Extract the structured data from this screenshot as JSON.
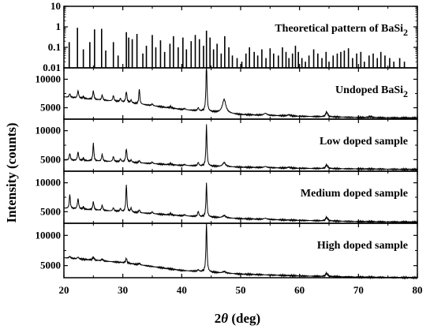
{
  "chart_data": {
    "type": "line",
    "xlabel_prefix": "2",
    "xlabel_symbol": "θ",
    "xlabel_suffix": " (deg)",
    "ylabel": "Intensity (counts)",
    "xlim": [
      20,
      80
    ],
    "x_ticks": [
      20,
      30,
      40,
      50,
      60,
      70,
      80
    ],
    "grid": false,
    "panels": [
      {
        "label": "Theoretical pattern of BaSi",
        "label_sub": "2",
        "type": "stick",
        "y_scale": "log",
        "ylim": [
          0.01,
          10
        ],
        "y_ticks": [
          0.01,
          0.1,
          1,
          10
        ],
        "y_tick_labels": [
          "0.01",
          "0.1",
          "1",
          "10"
        ],
        "sticks": [
          [
            20.9,
            0.18
          ],
          [
            22.3,
            0.9
          ],
          [
            23.3,
            0.08
          ],
          [
            24.4,
            0.18
          ],
          [
            25.2,
            0.75
          ],
          [
            26.4,
            0.8
          ],
          [
            27.1,
            0.07
          ],
          [
            28.4,
            0.18
          ],
          [
            29.2,
            0.04
          ],
          [
            30.6,
            0.55
          ],
          [
            31.0,
            0.3
          ],
          [
            31.6,
            0.25
          ],
          [
            32.4,
            0.45
          ],
          [
            33.4,
            0.05
          ],
          [
            34.0,
            0.12
          ],
          [
            35.0,
            0.4
          ],
          [
            35.6,
            0.1
          ],
          [
            36.4,
            0.22
          ],
          [
            37.1,
            0.06
          ],
          [
            38.0,
            0.15
          ],
          [
            38.6,
            0.35
          ],
          [
            39.4,
            0.1
          ],
          [
            40.2,
            0.3
          ],
          [
            40.8,
            0.08
          ],
          [
            41.6,
            0.2
          ],
          [
            42.3,
            0.4
          ],
          [
            43.0,
            0.25
          ],
          [
            43.7,
            0.12
          ],
          [
            44.2,
            0.65
          ],
          [
            44.8,
            0.3
          ],
          [
            45.4,
            0.08
          ],
          [
            46.0,
            0.15
          ],
          [
            46.7,
            0.05
          ],
          [
            47.3,
            0.35
          ],
          [
            48.0,
            0.1
          ],
          [
            48.6,
            0.04
          ],
          [
            49.4,
            0.03
          ],
          [
            50.2,
            0.02
          ],
          [
            50.9,
            0.05
          ],
          [
            51.5,
            0.1
          ],
          [
            52.3,
            0.06
          ],
          [
            52.9,
            0.04
          ],
          [
            53.6,
            0.08
          ],
          [
            54.3,
            0.03
          ],
          [
            55.0,
            0.09
          ],
          [
            55.6,
            0.05
          ],
          [
            56.4,
            0.04
          ],
          [
            57.1,
            0.1
          ],
          [
            57.7,
            0.06
          ],
          [
            58.2,
            0.03
          ],
          [
            58.8,
            0.05
          ],
          [
            59.3,
            0.12
          ],
          [
            59.8,
            0.06
          ],
          [
            60.4,
            0.03
          ],
          [
            61.0,
            0.02
          ],
          [
            61.6,
            0.04
          ],
          [
            62.4,
            0.08
          ],
          [
            63.1,
            0.05
          ],
          [
            63.8,
            0.03
          ],
          [
            64.5,
            0.06
          ],
          [
            65.0,
            0.02
          ],
          [
            65.7,
            0.04
          ],
          [
            66.4,
            0.05
          ],
          [
            67.0,
            0.06
          ],
          [
            67.6,
            0.07
          ],
          [
            68.3,
            0.09
          ],
          [
            69.0,
            0.03
          ],
          [
            69.7,
            0.05
          ],
          [
            70.4,
            0.06
          ],
          [
            71.0,
            0.02
          ],
          [
            71.8,
            0.04
          ],
          [
            72.5,
            0.05
          ],
          [
            73.2,
            0.03
          ],
          [
            73.8,
            0.06
          ],
          [
            74.5,
            0.04
          ],
          [
            75.3,
            0.03
          ],
          [
            76.0,
            0.02
          ],
          [
            77.0,
            0.03
          ],
          [
            77.8,
            0.02
          ]
        ]
      },
      {
        "label": "Undoped BaSi",
        "label_sub": "2",
        "type": "pattern",
        "ylim": [
          3000,
          12000
        ],
        "y_ticks": [
          5000,
          10000
        ],
        "y_tick_labels": [
          "5000",
          "10000"
        ],
        "baseline": [
          [
            20,
            6900
          ],
          [
            30,
            6000
          ],
          [
            40,
            4700
          ],
          [
            50,
            3800
          ],
          [
            60,
            3500
          ],
          [
            70,
            3300
          ],
          [
            80,
            3200
          ]
        ],
        "peaks": [
          [
            21.0,
            650,
            0.12
          ],
          [
            22.4,
            1300,
            0.12
          ],
          [
            23.3,
            350,
            0.12
          ],
          [
            25.0,
            1500,
            0.12
          ],
          [
            26.5,
            900,
            0.12
          ],
          [
            28.4,
            1000,
            0.12
          ],
          [
            29.6,
            600,
            0.12
          ],
          [
            30.6,
            1900,
            0.12
          ],
          [
            31.4,
            500,
            0.12
          ],
          [
            32.8,
            2700,
            0.1
          ],
          [
            35.0,
            300,
            0.15
          ],
          [
            38.1,
            250,
            0.15
          ],
          [
            40.5,
            200,
            0.15
          ],
          [
            42.8,
            550,
            0.12
          ],
          [
            44.2,
            8900,
            0.1
          ],
          [
            47.2,
            2400,
            0.35
          ],
          [
            54.2,
            350,
            0.3
          ],
          [
            58.2,
            200,
            0.3
          ],
          [
            64.6,
            850,
            0.2
          ],
          [
            72.0,
            150,
            0.3
          ]
        ]
      },
      {
        "label": "Low doped sample",
        "type": "pattern",
        "ylim": [
          3000,
          12000
        ],
        "y_ticks": [
          5000,
          10000
        ],
        "y_tick_labels": [
          "5000",
          "10000"
        ],
        "baseline": [
          [
            20,
            4900
          ],
          [
            30,
            4600
          ],
          [
            40,
            4000
          ],
          [
            50,
            3700
          ],
          [
            60,
            3500
          ],
          [
            70,
            3400
          ],
          [
            80,
            3300
          ]
        ],
        "peaks": [
          [
            21.0,
            1200,
            0.12
          ],
          [
            22.4,
            1500,
            0.12
          ],
          [
            23.3,
            450,
            0.12
          ],
          [
            25.0,
            3100,
            0.1
          ],
          [
            26.5,
            1200,
            0.12
          ],
          [
            28.4,
            900,
            0.12
          ],
          [
            29.6,
            500,
            0.12
          ],
          [
            30.6,
            2300,
            0.12
          ],
          [
            31.4,
            400,
            0.12
          ],
          [
            32.8,
            400,
            0.12
          ],
          [
            35.0,
            250,
            0.15
          ],
          [
            38.1,
            200,
            0.15
          ],
          [
            40.5,
            180,
            0.15
          ],
          [
            42.8,
            600,
            0.12
          ],
          [
            44.2,
            7100,
            0.1
          ],
          [
            47.2,
            700,
            0.3
          ],
          [
            54.2,
            200,
            0.3
          ],
          [
            58.2,
            150,
            0.3
          ],
          [
            64.6,
            650,
            0.2
          ]
        ]
      },
      {
        "label": "Medium doped sample",
        "type": "pattern",
        "ylim": [
          3000,
          12000
        ],
        "y_ticks": [
          5000,
          10000
        ],
        "y_tick_labels": [
          "5000",
          "10000"
        ],
        "baseline": [
          [
            20,
            5600
          ],
          [
            30,
            5000
          ],
          [
            40,
            4300
          ],
          [
            50,
            3800
          ],
          [
            60,
            3500
          ],
          [
            70,
            3300
          ],
          [
            80,
            3200
          ]
        ],
        "peaks": [
          [
            21.0,
            2500,
            0.1
          ],
          [
            22.4,
            1800,
            0.12
          ],
          [
            23.3,
            400,
            0.12
          ],
          [
            25.0,
            1400,
            0.12
          ],
          [
            26.5,
            900,
            0.12
          ],
          [
            28.4,
            600,
            0.12
          ],
          [
            29.6,
            500,
            0.12
          ],
          [
            30.6,
            4800,
            0.1
          ],
          [
            31.4,
            700,
            0.12
          ],
          [
            32.8,
            500,
            0.12
          ],
          [
            35.0,
            300,
            0.15
          ],
          [
            38.1,
            250,
            0.15
          ],
          [
            40.5,
            200,
            0.15
          ],
          [
            42.8,
            900,
            0.12
          ],
          [
            44.2,
            5800,
            0.1
          ],
          [
            47.2,
            400,
            0.3
          ],
          [
            54.2,
            200,
            0.3
          ],
          [
            64.6,
            650,
            0.2
          ]
        ]
      },
      {
        "label": "High doped sample",
        "type": "pattern",
        "ylim": [
          3000,
          12000
        ],
        "y_ticks": [
          5000,
          10000
        ],
        "y_tick_labels": [
          "5000",
          "10000"
        ],
        "baseline": [
          [
            20,
            6300
          ],
          [
            30,
            5500
          ],
          [
            40,
            4200
          ],
          [
            50,
            3600
          ],
          [
            60,
            3300
          ],
          [
            70,
            3100
          ],
          [
            80,
            3000
          ]
        ],
        "peaks": [
          [
            21.0,
            300,
            0.15
          ],
          [
            22.4,
            300,
            0.15
          ],
          [
            25.0,
            500,
            0.15
          ],
          [
            26.5,
            300,
            0.15
          ],
          [
            30.6,
            800,
            0.12
          ],
          [
            32.8,
            250,
            0.15
          ],
          [
            42.8,
            250,
            0.15
          ],
          [
            44.2,
            8400,
            0.1
          ],
          [
            47.2,
            250,
            0.3
          ],
          [
            64.6,
            550,
            0.2
          ]
        ]
      }
    ]
  }
}
